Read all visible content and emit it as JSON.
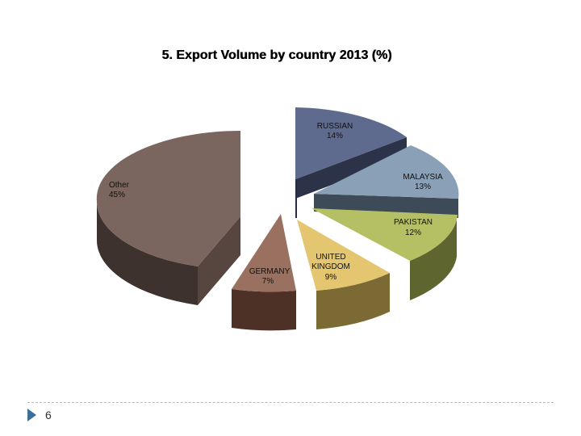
{
  "chart_data": {
    "type": "pie",
    "title": "5. Export Volume by country 2013 (%)",
    "slices": [
      {
        "name": "RUSSIAN",
        "label": "14%",
        "value": 14,
        "color": "#5e6a8e"
      },
      {
        "name": "MALAYSIA",
        "label": "13%",
        "value": 13,
        "color": "#8aa0b6"
      },
      {
        "name": "PAKISTAN",
        "label": "12%",
        "value": 12,
        "color": "#b5bf63"
      },
      {
        "name": "UNITED KINGDOM",
        "label": "9%",
        "value": 9,
        "color": "#e3c66f"
      },
      {
        "name": "GERMANY",
        "label": "7%",
        "value": 7,
        "color": "#9a7160"
      },
      {
        "name": "Other",
        "label": "45%",
        "value": 45,
        "color": "#7a665e"
      }
    ]
  },
  "footer": {
    "slide_number": "6"
  }
}
